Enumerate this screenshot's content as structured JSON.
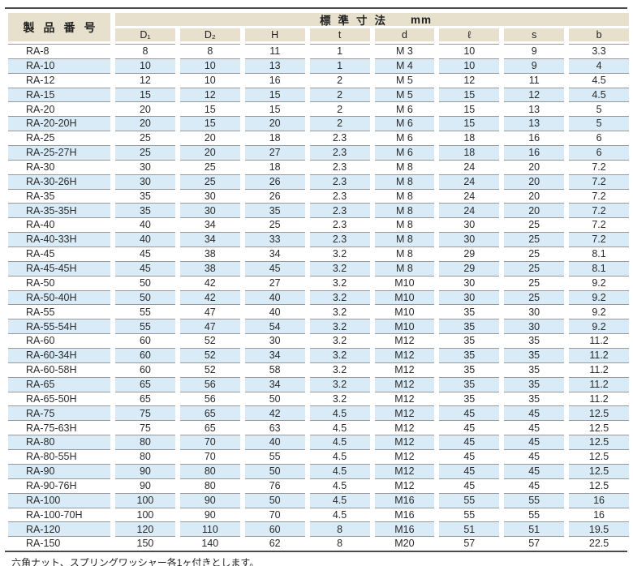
{
  "table": {
    "title_product": "製品番号",
    "title_span": "標準寸法",
    "title_unit": "mm",
    "columns": [
      "D₁",
      "D₂",
      "H",
      "t",
      "d",
      "ℓ",
      "s",
      "b"
    ],
    "rows": [
      [
        "RA-8",
        "8",
        "8",
        "11",
        "1",
        "M 3",
        "10",
        "9",
        "3.3"
      ],
      [
        "RA-10",
        "10",
        "10",
        "13",
        "1",
        "M 4",
        "10",
        "9",
        "4"
      ],
      [
        "RA-12",
        "12",
        "10",
        "16",
        "2",
        "M 5",
        "12",
        "11",
        "4.5"
      ],
      [
        "RA-15",
        "15",
        "12",
        "15",
        "2",
        "M 5",
        "15",
        "12",
        "4.5"
      ],
      [
        "RA-20",
        "20",
        "15",
        "15",
        "2",
        "M 6",
        "15",
        "13",
        "5"
      ],
      [
        "RA-20-20H",
        "20",
        "15",
        "20",
        "2",
        "M 6",
        "15",
        "13",
        "5"
      ],
      [
        "RA-25",
        "25",
        "20",
        "18",
        "2.3",
        "M 6",
        "18",
        "16",
        "6"
      ],
      [
        "RA-25-27H",
        "25",
        "20",
        "27",
        "2.3",
        "M 6",
        "18",
        "16",
        "6"
      ],
      [
        "RA-30",
        "30",
        "25",
        "18",
        "2.3",
        "M 8",
        "24",
        "20",
        "7.2"
      ],
      [
        "RA-30-26H",
        "30",
        "25",
        "26",
        "2.3",
        "M 8",
        "24",
        "20",
        "7.2"
      ],
      [
        "RA-35",
        "35",
        "30",
        "26",
        "2.3",
        "M 8",
        "24",
        "20",
        "7.2"
      ],
      [
        "RA-35-35H",
        "35",
        "30",
        "35",
        "2.3",
        "M 8",
        "24",
        "20",
        "7.2"
      ],
      [
        "RA-40",
        "40",
        "34",
        "25",
        "2.3",
        "M 8",
        "30",
        "25",
        "7.2"
      ],
      [
        "RA-40-33H",
        "40",
        "34",
        "33",
        "2.3",
        "M 8",
        "30",
        "25",
        "7.2"
      ],
      [
        "RA-45",
        "45",
        "38",
        "34",
        "3.2",
        "M 8",
        "29",
        "25",
        "8.1"
      ],
      [
        "RA-45-45H",
        "45",
        "38",
        "45",
        "3.2",
        "M 8",
        "29",
        "25",
        "8.1"
      ],
      [
        "RA-50",
        "50",
        "42",
        "27",
        "3.2",
        "M10",
        "30",
        "25",
        "9.2"
      ],
      [
        "RA-50-40H",
        "50",
        "42",
        "40",
        "3.2",
        "M10",
        "30",
        "25",
        "9.2"
      ],
      [
        "RA-55",
        "55",
        "47",
        "40",
        "3.2",
        "M10",
        "35",
        "30",
        "9.2"
      ],
      [
        "RA-55-54H",
        "55",
        "47",
        "54",
        "3.2",
        "M10",
        "35",
        "30",
        "9.2"
      ],
      [
        "RA-60",
        "60",
        "52",
        "30",
        "3.2",
        "M12",
        "35",
        "35",
        "11.2"
      ],
      [
        "RA-60-34H",
        "60",
        "52",
        "34",
        "3.2",
        "M12",
        "35",
        "35",
        "11.2"
      ],
      [
        "RA-60-58H",
        "60",
        "52",
        "58",
        "3.2",
        "M12",
        "35",
        "35",
        "11.2"
      ],
      [
        "RA-65",
        "65",
        "56",
        "34",
        "3.2",
        "M12",
        "35",
        "35",
        "11.2"
      ],
      [
        "RA-65-50H",
        "65",
        "56",
        "50",
        "3.2",
        "M12",
        "35",
        "35",
        "11.2"
      ],
      [
        "RA-75",
        "75",
        "65",
        "42",
        "4.5",
        "M12",
        "45",
        "45",
        "12.5"
      ],
      [
        "RA-75-63H",
        "75",
        "65",
        "63",
        "4.5",
        "M12",
        "45",
        "45",
        "12.5"
      ],
      [
        "RA-80",
        "80",
        "70",
        "40",
        "4.5",
        "M12",
        "45",
        "45",
        "12.5"
      ],
      [
        "RA-80-55H",
        "80",
        "70",
        "55",
        "4.5",
        "M12",
        "45",
        "45",
        "12.5"
      ],
      [
        "RA-90",
        "90",
        "80",
        "50",
        "4.5",
        "M12",
        "45",
        "45",
        "12.5"
      ],
      [
        "RA-90-76H",
        "90",
        "80",
        "76",
        "4.5",
        "M12",
        "45",
        "45",
        "12.5"
      ],
      [
        "RA-100",
        "100",
        "90",
        "50",
        "4.5",
        "M16",
        "55",
        "55",
        "16"
      ],
      [
        "RA-100-70H",
        "100",
        "90",
        "70",
        "4.5",
        "M16",
        "55",
        "55",
        "16"
      ],
      [
        "RA-120",
        "120",
        "110",
        "60",
        "8",
        "M16",
        "51",
        "51",
        "19.5"
      ],
      [
        "RA-150",
        "150",
        "140",
        "62",
        "8",
        "M20",
        "57",
        "57",
        "22.5"
      ]
    ],
    "colors": {
      "header_bg": "#e7e0cd",
      "stripe_bg": "#d8ebf7",
      "line": "#999999",
      "rule": "#4a4a4a",
      "text": "#2a2a2a"
    }
  },
  "footer": {
    "note": "六角ナット、スプリングワッシャー各1ヶ付きとします。"
  }
}
